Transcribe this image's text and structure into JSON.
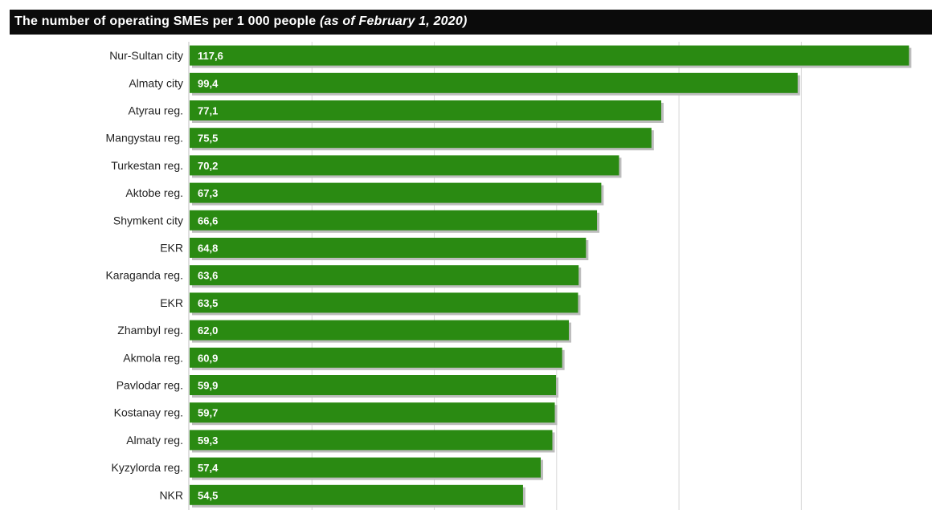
{
  "chart_data": {
    "type": "bar",
    "orientation": "horizontal",
    "title": "The number of operating SMEs per 1 000 people",
    "subtitle": "(as of February 1, 2020)",
    "categories": [
      "Nur-Sultan city",
      "Almaty city",
      "Atyrau reg.",
      "Mangystau reg.",
      "Turkestan reg.",
      "Aktobe reg.",
      "Shymkent city",
      "EKR",
      "Karaganda reg.",
      "EKR",
      "Zhambyl reg.",
      "Akmola reg.",
      "Pavlodar reg.",
      "Kostanay reg.",
      "Almaty reg.",
      "Kyzylorda reg.",
      "NKR"
    ],
    "values": [
      117.6,
      99.4,
      77.1,
      75.5,
      70.2,
      67.3,
      66.6,
      64.8,
      63.6,
      63.5,
      62.0,
      60.9,
      59.9,
      59.7,
      59.3,
      57.4,
      54.5
    ],
    "value_labels": [
      "117,6",
      "99,4",
      "77,1",
      "75,5",
      "70,2",
      "67,3",
      "66,6",
      "64,8",
      "63,6",
      "63,5",
      "62,0",
      "60,9",
      "59,9",
      "59,7",
      "59,3",
      "57,4",
      "54,5"
    ],
    "xlim": [
      0,
      120
    ],
    "grid": true,
    "bar_color": "#2a8a12",
    "title_background": "#0b0b0b"
  }
}
